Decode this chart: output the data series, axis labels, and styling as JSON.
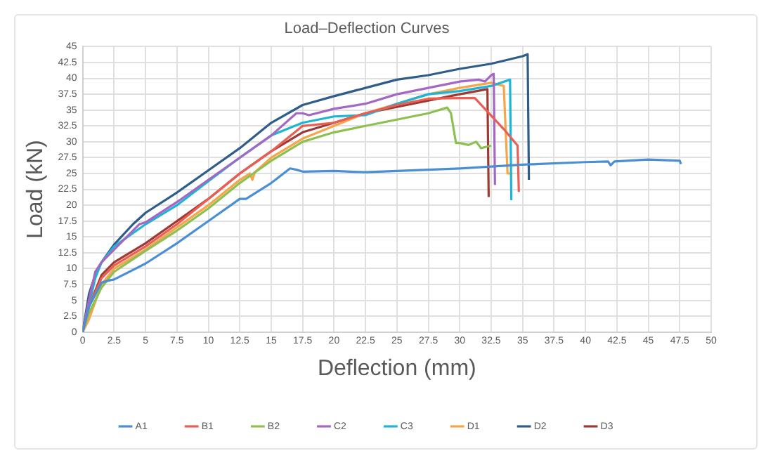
{
  "chart_data": {
    "type": "line",
    "title": "Load–Deflection Curves",
    "xlabel": "Deflection (mm)",
    "ylabel": "Load (kN)",
    "xlim": [
      0,
      50
    ],
    "xticks": [
      0,
      2.5,
      5,
      7.5,
      10,
      12.5,
      15,
      17.5,
      20,
      22.5,
      25,
      27.5,
      30,
      32.5,
      35,
      37.5,
      40,
      42.5,
      45,
      47.5,
      50
    ],
    "ylim": [
      0,
      45
    ],
    "yticks": [
      0,
      2.5,
      5,
      7.5,
      10,
      12.5,
      15,
      17.5,
      20,
      22.5,
      25,
      27.5,
      30,
      32.5,
      35,
      37.5,
      40,
      42.5,
      45
    ],
    "grid": true,
    "legend": "bottom",
    "marker": "none",
    "line_style": "solid",
    "series": [
      {
        "name": "A1",
        "color": "#4a8fd4",
        "x": [
          0,
          0.5,
          1.5,
          2,
          2.5,
          5,
          7.5,
          10,
          12.5,
          13,
          15,
          16.5,
          17,
          17.5,
          20,
          22.5,
          25,
          27.5,
          30,
          35,
          40,
          41.8,
          42,
          42.3,
          45,
          47.5,
          47.6
        ],
        "values": [
          0,
          4,
          7.8,
          8.1,
          8.3,
          10.8,
          14,
          17.5,
          21,
          21,
          23.5,
          25.8,
          25.6,
          25.3,
          25.4,
          25.2,
          25.4,
          25.6,
          25.8,
          26.4,
          26.8,
          26.9,
          26.3,
          26.9,
          27.2,
          27,
          26.5
        ]
      },
      {
        "name": "B1",
        "color": "#e95f55",
        "x": [
          0,
          0.5,
          1.5,
          2.5,
          5,
          7.5,
          10,
          12.5,
          15,
          17.5,
          20,
          22.5,
          25,
          27.5,
          30,
          31.2,
          33.5,
          34.6,
          34.7
        ],
        "values": [
          0,
          4,
          8.5,
          10.5,
          13.5,
          17,
          21,
          25,
          28.5,
          32.5,
          33,
          34.5,
          35.8,
          36.8,
          36.9,
          36.9,
          32,
          29.4,
          22.1
        ]
      },
      {
        "name": "B2",
        "color": "#8cc152",
        "x": [
          0,
          0.5,
          1.5,
          2.5,
          5,
          7.5,
          10,
          12.5,
          15,
          17.5,
          20,
          22.5,
          25,
          27.5,
          29,
          29.3,
          29.7,
          30,
          30.7,
          31.3,
          31.7,
          32.5
        ],
        "values": [
          0,
          3,
          7,
          9.5,
          12.8,
          16,
          19.5,
          23.5,
          27,
          30,
          31.5,
          32.5,
          33.5,
          34.5,
          35.4,
          34.5,
          29.8,
          29.8,
          29.5,
          30,
          29,
          29.4
        ]
      },
      {
        "name": "C2",
        "color": "#a468c4",
        "x": [
          0,
          0.5,
          1,
          1.5,
          2.5,
          4.5,
          5,
          7.5,
          10,
          12.5,
          15,
          17,
          17.5,
          18,
          20,
          22.5,
          25,
          27.5,
          30,
          31.5,
          32,
          32.5,
          32.7,
          32.8
        ],
        "values": [
          0,
          5,
          9.5,
          11,
          13,
          17,
          17.3,
          20.5,
          24,
          27.5,
          31,
          34.5,
          34.5,
          34.2,
          35.2,
          36,
          37.5,
          38.5,
          39.5,
          39.8,
          39.5,
          40.5,
          40.7,
          23.2
        ]
      },
      {
        "name": "C3",
        "color": "#1cb5d6",
        "x": [
          0,
          0.3,
          1,
          1.5,
          2.5,
          5,
          7.5,
          10,
          12.5,
          15,
          17.5,
          20,
          22.5,
          25,
          27.5,
          30,
          32.5,
          34,
          34.1
        ],
        "values": [
          0,
          2.5,
          8.5,
          11,
          13.5,
          17,
          20,
          23.8,
          27.5,
          31,
          33,
          34,
          34.2,
          36,
          37.5,
          38,
          38.8,
          39.8,
          20.8
        ]
      },
      {
        "name": "D1",
        "color": "#f7a54a",
        "x": [
          0,
          0.5,
          1.5,
          2.5,
          5,
          7.5,
          10,
          12.5,
          13.3,
          13.5,
          13.7,
          15,
          17.5,
          20,
          22.5,
          25,
          27.5,
          30,
          32.5,
          33.5,
          33.8,
          34.2
        ],
        "values": [
          0,
          2,
          7.5,
          10,
          13,
          16.5,
          20,
          24,
          25,
          24,
          25.2,
          27.5,
          30.5,
          32.5,
          34.5,
          36,
          37.5,
          38.5,
          39.3,
          38.8,
          25,
          25
        ]
      },
      {
        "name": "D2",
        "color": "#2e5d8a",
        "x": [
          0,
          0.5,
          1,
          1.5,
          2.5,
          4,
          5,
          7.5,
          10,
          12.5,
          15,
          17.5,
          20,
          22.5,
          25,
          27.5,
          30,
          32.5,
          35,
          35.4,
          35.5
        ],
        "values": [
          0,
          6,
          9,
          11,
          13.8,
          17,
          18.8,
          22,
          25.5,
          29,
          33,
          35.8,
          37.2,
          38.5,
          39.8,
          40.5,
          41.5,
          42.3,
          43.5,
          43.8,
          24
        ]
      },
      {
        "name": "D3",
        "color": "#9e3a32",
        "x": [
          0,
          0.5,
          1.5,
          2.5,
          5,
          7.5,
          10,
          12.5,
          15,
          17.5,
          20,
          22.5,
          25,
          27.5,
          30,
          32.2,
          32.3
        ],
        "values": [
          0,
          4,
          9,
          11,
          14,
          17.5,
          21,
          25,
          28.5,
          31.5,
          33,
          34.5,
          35.5,
          36.5,
          37.5,
          38.3,
          21.3
        ]
      }
    ]
  }
}
